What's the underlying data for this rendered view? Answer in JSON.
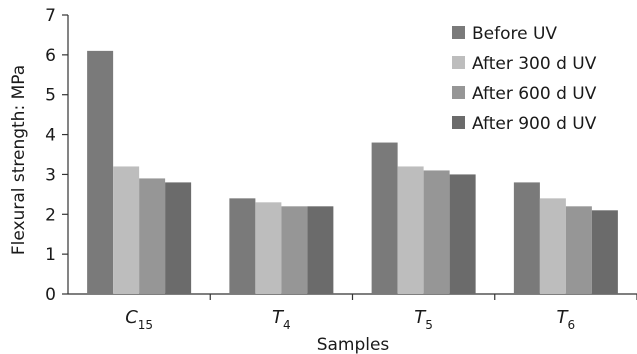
{
  "chart_data": {
    "type": "bar",
    "title": "",
    "xlabel": "Samples",
    "ylabel": "Flexural strength: MPa",
    "ylim": [
      0,
      7
    ],
    "yticks": [
      0,
      1,
      2,
      3,
      4,
      5,
      6,
      7
    ],
    "grid": false,
    "legend_position": "top-right",
    "categories": [
      {
        "base": "C",
        "sub": "15"
      },
      {
        "base": "T",
        "sub": "4"
      },
      {
        "base": "T",
        "sub": "5"
      },
      {
        "base": "T",
        "sub": "6"
      }
    ],
    "series": [
      {
        "name": "Before UV",
        "color": "#7a7a7a",
        "values": [
          6.1,
          2.4,
          3.8,
          2.8
        ]
      },
      {
        "name": "After 300 d UV",
        "color": "#bdbdbd",
        "values": [
          3.2,
          2.3,
          3.2,
          2.4
        ]
      },
      {
        "name": "After 600 d UV",
        "color": "#969696",
        "values": [
          2.9,
          2.2,
          3.1,
          2.2
        ]
      },
      {
        "name": "After 900 d UV",
        "color": "#6b6b6b",
        "values": [
          2.8,
          2.2,
          3.0,
          2.1
        ]
      }
    ]
  }
}
